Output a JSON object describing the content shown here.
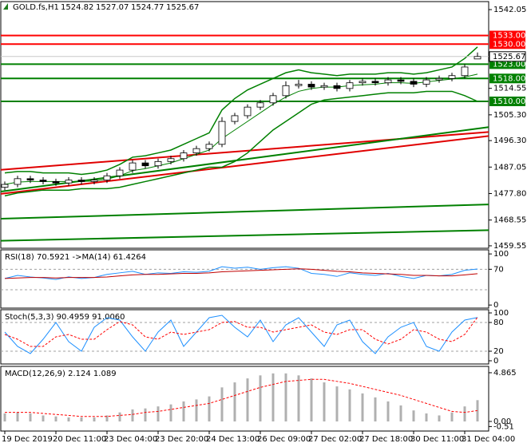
{
  "chart_data": [
    {
      "type": "candlestick",
      "title": "GOLD.fs,H1",
      "header_values": [
        1524.82,
        1527.07,
        1524.77,
        1525.67
      ],
      "categories": [
        "19 Dec 2019",
        null,
        null,
        null,
        "20 Dec 11:00",
        null,
        null,
        null,
        "23 Dec 04:00",
        null,
        null,
        null,
        "23 Dec 20:00",
        null,
        null,
        null,
        "24 Dec 13:00",
        null,
        null,
        null,
        "26 Dec 09:00",
        null,
        null,
        null,
        "27 Dec 02:00",
        null,
        null,
        null,
        "27 Dec 18:00",
        null,
        null,
        null,
        "30 Dec 11:00",
        null,
        null,
        null,
        "31 Dec 04:00",
        null
      ],
      "open": [
        1480,
        1481,
        1483,
        1482.5,
        1482,
        1481.5,
        1482.5,
        1482,
        1482.5,
        1484,
        1486,
        1488.5,
        1487.5,
        1489,
        1490,
        1492,
        1493.5,
        1495,
        1503,
        1505,
        1508,
        1509.5,
        1512,
        1515.5,
        1516,
        1515,
        1515.5,
        1514.5,
        1516.5,
        1517,
        1516.5,
        1517.5,
        1517,
        1516,
        1517.5,
        1518,
        1519,
        1524.82
      ],
      "high": [
        1482,
        1484,
        1484,
        1483.5,
        1483,
        1483.5,
        1483.5,
        1483.5,
        1485,
        1487,
        1489.5,
        1489.5,
        1490,
        1491,
        1493,
        1494.5,
        1496,
        1504.5,
        1506,
        1509,
        1510.5,
        1513,
        1517,
        1517.5,
        1517,
        1516.5,
        1516.5,
        1517.5,
        1518,
        1518,
        1518.5,
        1518.5,
        1518,
        1518.5,
        1519,
        1520,
        1523,
        1527.07
      ],
      "low": [
        1479,
        1480,
        1481.5,
        1481,
        1480.5,
        1480.5,
        1481,
        1481,
        1481.5,
        1483,
        1485,
        1486.5,
        1486.5,
        1488,
        1489,
        1491,
        1492.5,
        1494,
        1502,
        1504,
        1507,
        1508.5,
        1511,
        1514.5,
        1514,
        1514,
        1513.5,
        1513.5,
        1515.5,
        1515.5,
        1515.5,
        1516,
        1515,
        1515,
        1516.5,
        1517,
        1518,
        1524.77
      ],
      "close": [
        1481,
        1483,
        1482.5,
        1482,
        1481.5,
        1482.5,
        1482,
        1482.5,
        1484,
        1486,
        1488.5,
        1487.5,
        1489,
        1490,
        1492,
        1493.5,
        1495,
        1503,
        1505,
        1508,
        1509.5,
        1512,
        1515.5,
        1516,
        1515,
        1515.5,
        1514.5,
        1516.5,
        1517,
        1516.5,
        1517.5,
        1517,
        1516,
        1517.5,
        1518,
        1519,
        1522,
        1525.67
      ],
      "up_color": "#ffffff",
      "down_color": "#000000",
      "bands": {
        "color": "#008000",
        "upper": [
          1485,
          1485.5,
          1485.5,
          1485,
          1485,
          1485,
          1484.5,
          1485,
          1486,
          1488,
          1490.5,
          1491,
          1492,
          1493,
          1495,
          1497,
          1499,
          1507,
          1511,
          1514,
          1516,
          1518,
          1520,
          1521,
          1520,
          1519.5,
          1519,
          1519.5,
          1519.5,
          1519.5,
          1520,
          1520,
          1519.5,
          1520,
          1521,
          1522,
          1525,
          1529
        ],
        "middle": [
          1481,
          1481.8,
          1482,
          1482,
          1482,
          1482,
          1482,
          1482.2,
          1482.8,
          1484,
          1485.8,
          1486.5,
          1487.5,
          1488.5,
          1490,
          1491.5,
          1493,
          1497,
          1500,
          1503,
          1506,
          1509,
          1511.5,
          1513.5,
          1514.5,
          1515,
          1515,
          1515.5,
          1515.8,
          1516,
          1516.5,
          1516.5,
          1516.3,
          1516.8,
          1517.3,
          1517.8,
          1518.5,
          1519.5
        ],
        "lower": [
          1477,
          1478,
          1478.5,
          1479,
          1479,
          1479,
          1479.5,
          1479.5,
          1479.5,
          1480,
          1481,
          1482,
          1483,
          1484,
          1485,
          1486,
          1487,
          1487,
          1489,
          1492,
          1496,
          1500,
          1503,
          1506,
          1509,
          1510.5,
          1511,
          1511.5,
          1512,
          1512.5,
          1513,
          1513,
          1513,
          1513.5,
          1513.5,
          1513.5,
          1512,
          1510
        ]
      },
      "trend_lines": [
        {
          "color": "#008000",
          "y": [
            1469.0,
            1474.0
          ]
        },
        {
          "color": "#008000",
          "y": [
            1461.3,
            1465.0
          ]
        },
        {
          "color": "#e00000",
          "y": [
            1486.1,
            1499.3
          ]
        },
        {
          "color": "#e00000",
          "y": [
            1477.7,
            1497.9
          ]
        },
        {
          "color": "#008000",
          "y": [
            1478.5,
            1501.0
          ]
        }
      ],
      "levels": [
        {
          "value": 1533,
          "label": "1533.00",
          "color": "#ff0000"
        },
        {
          "value": 1530,
          "label": "1530.00",
          "color": "#ff0000"
        },
        {
          "value": 1523,
          "label": "1523.00",
          "color": "#008000"
        },
        {
          "value": 1518,
          "label": "1518.00",
          "color": "#008000"
        },
        {
          "value": 1510,
          "label": "1510.00",
          "color": "#008000"
        }
      ],
      "last_price": 1525.67,
      "ylim": [
        1458.7,
        1544.85
      ],
      "yticks": [
        1542.05,
        1514.55,
        {
          "value": 1505.3,
          "label": "1505.30"
        },
        {
          "value": 1496.3,
          "label": "1496.30"
        },
        1487.05,
        {
          "value": 1477.8,
          "label": "1477.80"
        },
        1468.55,
        1459.55
      ]
    },
    {
      "type": "line",
      "title": "RSI(18) 70.5921 ->MA(14) 61.4264",
      "series": [
        {
          "color": "#1e90ff",
          "dash": false,
          "values": [
            52,
            58,
            55,
            53,
            50,
            55,
            52,
            54,
            60,
            63,
            66,
            60,
            63,
            62,
            65,
            64,
            66,
            75,
            72,
            74,
            70,
            73,
            75,
            72,
            62,
            60,
            56,
            63,
            60,
            58,
            62,
            56,
            52,
            58,
            57,
            60,
            68,
            70.59
          ]
        },
        {
          "color": "#c00000",
          "dash": false,
          "values": [
            52,
            53,
            54,
            54,
            53,
            54,
            54,
            54,
            55,
            57,
            59,
            60,
            60,
            61,
            62,
            62,
            63,
            65,
            66,
            67,
            68,
            69,
            70,
            71,
            70,
            68,
            66,
            65,
            63,
            62,
            61,
            60,
            58,
            58,
            57,
            57,
            59,
            61.43
          ]
        }
      ],
      "levels": [
        70,
        30
      ],
      "ylim": [
        -6,
        108
      ],
      "yticks": [
        100,
        70,
        0
      ]
    },
    {
      "type": "line",
      "title": "Stoch(5,3,3) 90.4959 91.0060",
      "series": [
        {
          "color": "#1e90ff",
          "dash": false,
          "values": [
            60,
            30,
            15,
            45,
            80,
            40,
            20,
            70,
            90,
            85,
            50,
            20,
            60,
            85,
            30,
            60,
            90,
            95,
            70,
            50,
            85,
            40,
            75,
            90,
            60,
            30,
            75,
            85,
            40,
            15,
            50,
            70,
            80,
            30,
            20,
            60,
            85,
            90.5
          ]
        },
        {
          "color": "#ff0000",
          "dash": true,
          "values": [
            55,
            45,
            30,
            30,
            50,
            55,
            45,
            45,
            65,
            82,
            75,
            50,
            45,
            60,
            55,
            60,
            65,
            80,
            82,
            70,
            70,
            60,
            65,
            70,
            75,
            60,
            55,
            65,
            65,
            45,
            35,
            45,
            65,
            60,
            45,
            40,
            55,
            91.0
          ]
        }
      ],
      "levels": [
        80,
        20
      ],
      "ylim": [
        -6.7,
        106.7
      ],
      "yticks": [
        100,
        80,
        20,
        0
      ]
    },
    {
      "type": "macd",
      "title": "MACD(12,26,9) 2.124 1.089",
      "values": [
        0.8,
        0.9,
        0.8,
        0.6,
        0.5,
        0.4,
        0.4,
        0.4,
        0.6,
        0.9,
        1.2,
        1.3,
        1.5,
        1.7,
        2.0,
        2.2,
        2.5,
        3.4,
        3.9,
        4.3,
        4.6,
        4.8,
        4.8,
        4.6,
        4.3,
        3.9,
        3.5,
        3.2,
        2.8,
        2.4,
        2.0,
        1.6,
        1.1,
        0.8,
        0.6,
        0.9,
        1.5,
        2.124
      ],
      "color": "#b0b0b0",
      "signal": {
        "color": "#ff0000",
        "values": [
          0.9,
          0.9,
          0.9,
          0.8,
          0.7,
          0.6,
          0.5,
          0.5,
          0.5,
          0.6,
          0.7,
          0.9,
          1.0,
          1.2,
          1.4,
          1.6,
          1.8,
          2.2,
          2.6,
          3.0,
          3.4,
          3.7,
          4.0,
          4.1,
          4.2,
          4.2,
          4.0,
          3.8,
          3.5,
          3.2,
          2.9,
          2.6,
          2.2,
          1.8,
          1.4,
          1.0,
          0.9,
          1.089
        ]
      },
      "ylim": [
        -0.96,
        5.5
      ],
      "yticks": [
        4.865,
        {
          "value": 0,
          "label": "0.00"
        },
        -0.51
      ]
    }
  ]
}
